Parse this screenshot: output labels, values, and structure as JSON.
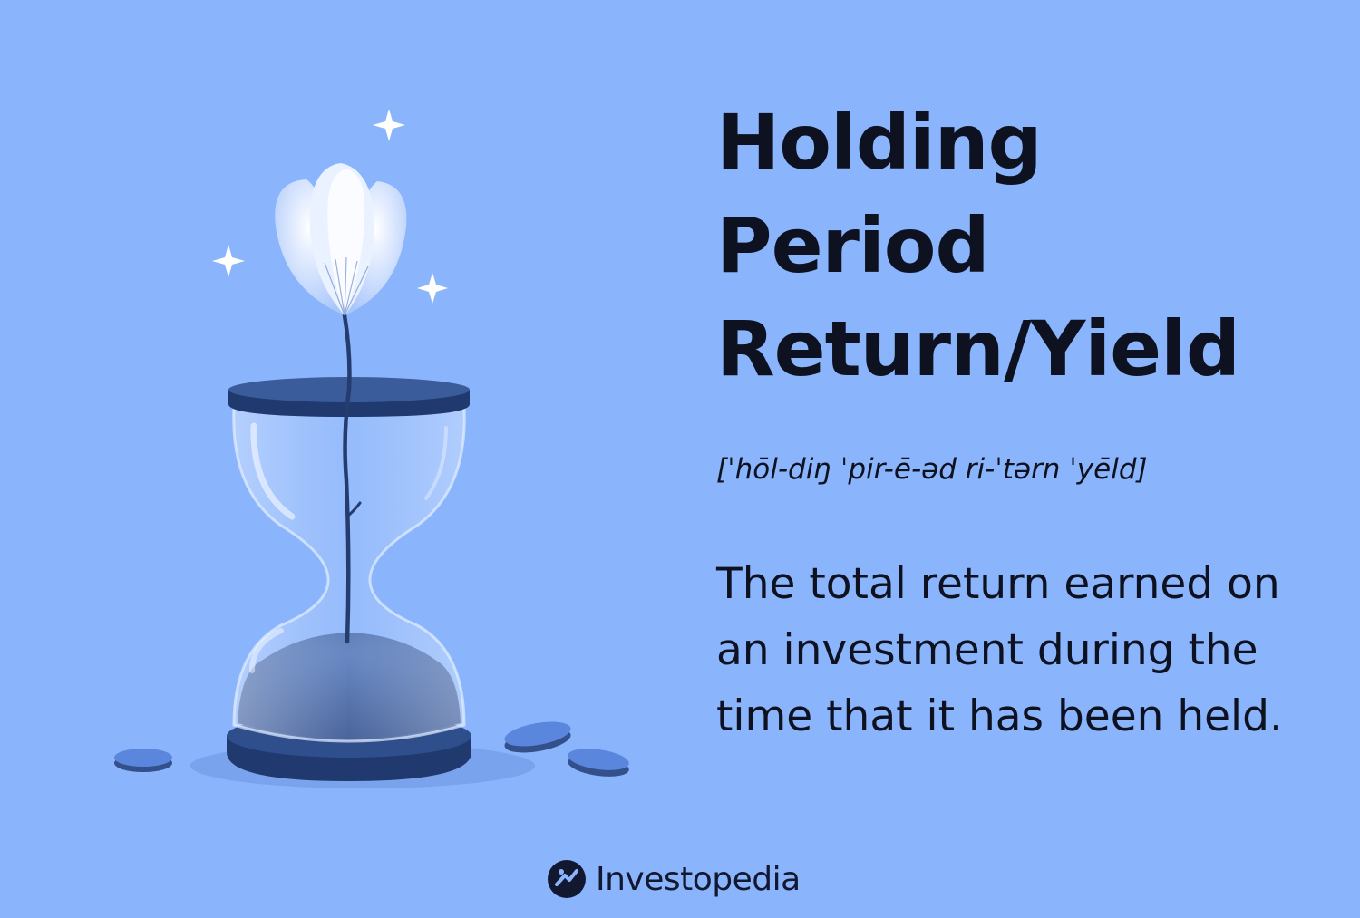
{
  "title": {
    "lines": [
      "Holding",
      "Period",
      "Return/Yield"
    ]
  },
  "pronunciation": "[ˈhōl-diŋ ˈpir-ē-əd ri-ˈtərn ˈyēld]",
  "definition": "The total return earned on an investment during the time that it has been held.",
  "brand": {
    "name": "Investopedia",
    "logo_icon": "investopedia-logo-icon"
  },
  "illustration": {
    "icon": "hourglass-flower-icon",
    "elements": [
      "hourglass",
      "flower",
      "sparkles",
      "coins"
    ]
  },
  "colors": {
    "background": "#8ab4fb",
    "text": "#0e1220",
    "hourglass_base": "#2e4f8c",
    "sand": "#34548f",
    "coin": "#5a86dd"
  }
}
